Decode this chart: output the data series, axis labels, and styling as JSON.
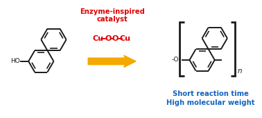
{
  "arrow_color": "#f5a800",
  "structure_color": "#1a1a1a",
  "blue_text_color": "#1565c0",
  "red_text_color": "#dd0000",
  "line1": "Short reaction time",
  "line2": "High molecular weight",
  "cat_label_1": "Enzyme-inspired",
  "cat_label_2": "catalyst",
  "bg_color": "#ffffff",
  "lw": 1.4
}
